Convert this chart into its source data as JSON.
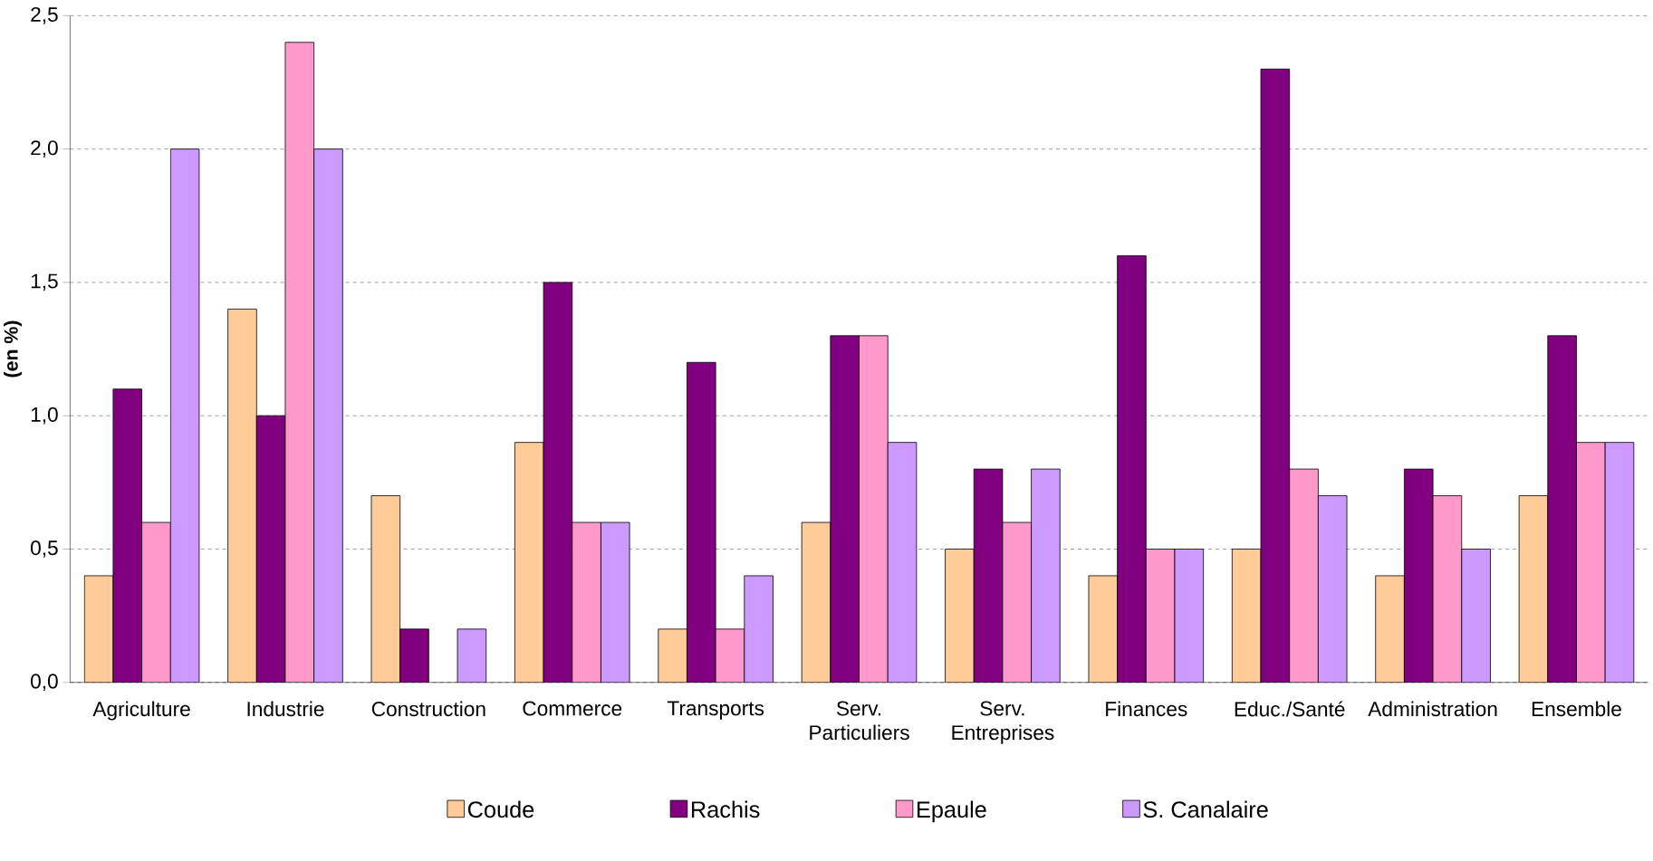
{
  "chart_data": {
    "type": "bar",
    "ylabel": "(en %)",
    "categories": [
      "Agriculture",
      "Industrie",
      "Construction",
      "Commerce",
      "Transports",
      "Serv. Particuliers",
      "Serv. Entreprises",
      "Finances",
      "Educ./Santé",
      "Administration",
      "Ensemble"
    ],
    "series": [
      {
        "name": "Coude",
        "color": "#ffcc99",
        "values": [
          0.4,
          1.4,
          0.7,
          0.9,
          0.2,
          0.6,
          0.5,
          0.4,
          0.5,
          0.4,
          0.7
        ]
      },
      {
        "name": "Rachis",
        "color": "#800080",
        "values": [
          1.1,
          1.0,
          0.2,
          1.5,
          1.2,
          1.3,
          0.8,
          1.6,
          2.3,
          0.8,
          1.3
        ]
      },
      {
        "name": "Epaule",
        "color": "#ff99cc",
        "values": [
          0.6,
          2.4,
          null,
          0.6,
          0.2,
          1.3,
          0.6,
          0.5,
          0.8,
          0.7,
          0.9
        ]
      },
      {
        "name": "S. Canalaire",
        "color": "#cc99ff",
        "values": [
          2.0,
          2.0,
          0.2,
          0.6,
          0.4,
          0.9,
          0.8,
          0.5,
          0.7,
          0.5,
          0.9
        ]
      }
    ],
    "ylim": [
      0,
      2.5
    ],
    "yticks": [
      {
        "value": 0,
        "label": "0,0"
      },
      {
        "value": 0.5,
        "label": "0,5"
      },
      {
        "value": 1.0,
        "label": "1,0"
      },
      {
        "value": 1.5,
        "label": "1,5"
      },
      {
        "value": 2.0,
        "label": "2,0"
      },
      {
        "value": 2.5,
        "label": "2,5"
      }
    ],
    "grid": "y",
    "legend": "bottom"
  }
}
